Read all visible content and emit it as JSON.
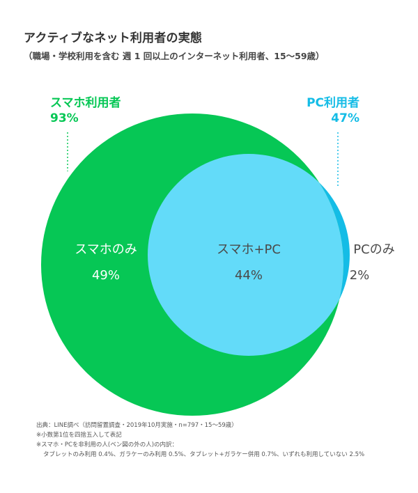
{
  "title": "アクティブなネット利用者の実態",
  "subtitle": "（職場・学校利用を含む 週 1 回以上のインターネット利用者、15〜59歳）",
  "groups": {
    "smartphone": {
      "label": "スマホ利用者",
      "percent": "93%",
      "color": "#06C755"
    },
    "pc": {
      "label": "PC利用者",
      "percent": "47%",
      "color": "#14BCE6"
    }
  },
  "regions": {
    "smartphone_only": {
      "label": "スマホのみ",
      "percent": "49%"
    },
    "both": {
      "label": "スマホ+PC",
      "percent": "44%",
      "color": "#63DBF9"
    },
    "pc_only": {
      "label": "PCのみ",
      "percent": "2%"
    }
  },
  "notes": [
    "出典：LINE調べ（訪問留置調査・2019年10月実施・n=797・15〜59歳）",
    "※小数第1位を四捨五入して表記",
    "※スマホ・PCを非利用の人(ベン図の外の人)の内訳：",
    "タブレットのみ利用 0.4%、ガラケーのみ利用 0.5%、タブレット+ガラケー併用 0.7%、いずれも利用していない 2.5%"
  ]
}
